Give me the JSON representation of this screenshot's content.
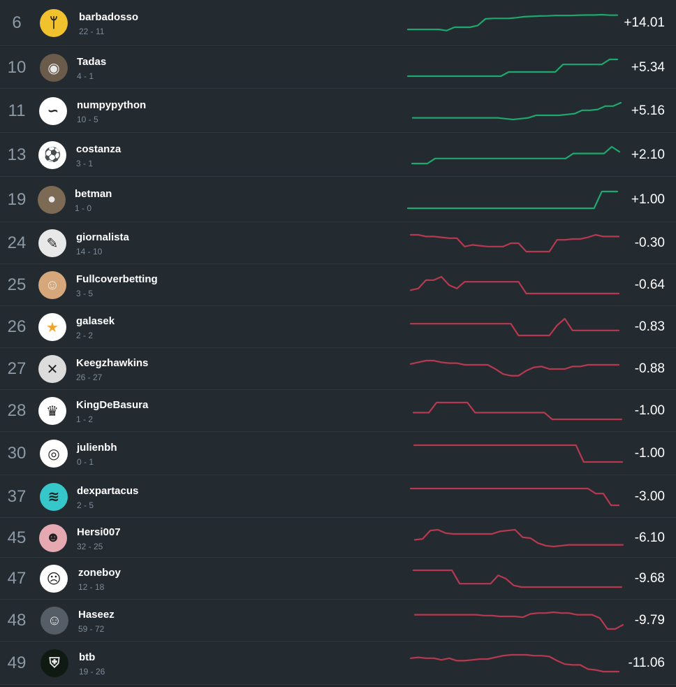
{
  "colors": {
    "positive": "#1fa86e",
    "negative": "#b8394f"
  },
  "rows": [
    {
      "rank": "6",
      "name": "barbadosso",
      "record": "22 - 11",
      "profit": "+14.01",
      "avatar_icon": "hook-logo-icon",
      "avatar_bg": "#f2c12e",
      "avatar_glyph": "ᛘ",
      "trend": "positive",
      "spark": [
        0.12,
        0.12,
        0.12,
        0.12,
        0.12,
        0.05,
        0.25,
        0.25,
        0.25,
        0.35,
        0.75,
        0.78,
        0.78,
        0.78,
        0.82,
        0.88,
        0.9,
        0.92,
        0.93,
        0.95,
        0.95,
        0.95,
        0.97,
        0.98,
        0.98,
        1.0,
        0.97,
        0.97
      ]
    },
    {
      "rank": "10",
      "name": "Tadas",
      "record": "4 - 1",
      "profit": "+5.34",
      "avatar_icon": "person-photo-icon",
      "avatar_bg": "#6b5b4a",
      "avatar_glyph": "◉",
      "trend": "positive",
      "spark": [
        0.0,
        0.0,
        0.0,
        0.0,
        0.0,
        0.0,
        0.0,
        0.0,
        0.0,
        0.0,
        0.0,
        0.0,
        0.0,
        0.25,
        0.25,
        0.25,
        0.25,
        0.25,
        0.25,
        0.25,
        0.7,
        0.7,
        0.7,
        0.7,
        0.7,
        0.7,
        1.0,
        1.0
      ]
    },
    {
      "rank": "11",
      "name": "numpypython",
      "record": "10 - 5",
      "profit": "+5.16",
      "avatar_icon": "python-logo-icon",
      "avatar_bg": "#ffffff",
      "avatar_glyph": "∽",
      "trend": "positive",
      "spark": [
        0.1,
        0.1,
        0.1,
        0.1,
        0.1,
        0.1,
        0.1,
        0.1,
        0.1,
        0.1,
        0.1,
        0.1,
        0.05,
        0.0,
        0.05,
        0.1,
        0.25,
        0.25,
        0.25,
        0.25,
        0.3,
        0.35,
        0.55,
        0.55,
        0.6,
        0.8,
        0.8,
        1.0
      ]
    },
    {
      "rank": "13",
      "name": "costanza",
      "record": "3 - 1",
      "profit": "+2.10",
      "avatar_icon": "soccer-ball-icon",
      "avatar_bg": "#ffffff",
      "avatar_glyph": "⚽",
      "trend": "positive",
      "spark": [
        0.0,
        0.0,
        0.0,
        0.3,
        0.3,
        0.3,
        0.3,
        0.3,
        0.3,
        0.3,
        0.3,
        0.3,
        0.3,
        0.3,
        0.3,
        0.3,
        0.3,
        0.3,
        0.3,
        0.3,
        0.3,
        0.6,
        0.6,
        0.6,
        0.6,
        0.6,
        1.0,
        0.7
      ]
    },
    {
      "rank": "19",
      "name": "betman",
      "record": "1 - 0",
      "profit": "+1.00",
      "avatar_icon": "person-photo-icon",
      "avatar_bg": "#7d6a55",
      "avatar_glyph": "●",
      "trend": "positive",
      "spark": [
        0.0,
        0.0,
        0.0,
        0.0,
        0.0,
        0.0,
        0.0,
        0.0,
        0.0,
        0.0,
        0.0,
        0.0,
        0.0,
        0.0,
        0.0,
        0.0,
        0.0,
        0.0,
        0.0,
        0.0,
        0.0,
        0.0,
        0.0,
        0.0,
        0.0,
        1.0,
        1.0,
        1.0
      ]
    },
    {
      "rank": "24",
      "name": "giornalista",
      "record": "14 - 10",
      "profit": "-0.30",
      "avatar_icon": "newspaper-logo-icon",
      "avatar_bg": "#e8e8e8",
      "avatar_glyph": "✎",
      "trend": "negative",
      "spark": [
        1.0,
        1.0,
        0.9,
        0.9,
        0.85,
        0.8,
        0.8,
        0.3,
        0.4,
        0.35,
        0.3,
        0.3,
        0.3,
        0.5,
        0.5,
        0.0,
        0.0,
        0.0,
        0.0,
        0.7,
        0.7,
        0.75,
        0.75,
        0.85,
        1.0,
        0.9,
        0.9,
        0.9
      ]
    },
    {
      "rank": "25",
      "name": "Fullcoverbetting",
      "record": "3 - 5",
      "profit": "-0.64",
      "avatar_icon": "person-photo-icon",
      "avatar_bg": "#d6a77a",
      "avatar_glyph": "☺",
      "trend": "negative",
      "spark": [
        0.2,
        0.3,
        0.8,
        0.8,
        1.0,
        0.5,
        0.3,
        0.7,
        0.7,
        0.7,
        0.7,
        0.7,
        0.7,
        0.7,
        0.7,
        0.0,
        0.0,
        0.0,
        0.0,
        0.0,
        0.0,
        0.0,
        0.0,
        0.0,
        0.0,
        0.0,
        0.0,
        0.0
      ]
    },
    {
      "rank": "26",
      "name": "galasek",
      "record": "2 - 2",
      "profit": "-0.83",
      "avatar_icon": "star-icon",
      "avatar_bg": "#ffffff",
      "avatar_glyph": "★",
      "trend": "negative",
      "spark": [
        0.7,
        0.7,
        0.7,
        0.7,
        0.7,
        0.7,
        0.7,
        0.7,
        0.7,
        0.7,
        0.7,
        0.7,
        0.7,
        0.7,
        0.0,
        0.0,
        0.0,
        0.0,
        0.0,
        0.6,
        1.0,
        0.3,
        0.3,
        0.3,
        0.3,
        0.3,
        0.3,
        0.3
      ]
    },
    {
      "rank": "27",
      "name": "Keegzhawkins",
      "record": "26 - 27",
      "profit": "-0.88",
      "avatar_icon": "hawk-logo-icon",
      "avatar_bg": "#dcdcdc",
      "avatar_glyph": "✕",
      "trend": "negative",
      "spark": [
        0.8,
        0.9,
        1.0,
        1.0,
        0.9,
        0.85,
        0.85,
        0.75,
        0.75,
        0.75,
        0.75,
        0.5,
        0.2,
        0.1,
        0.1,
        0.4,
        0.6,
        0.65,
        0.5,
        0.5,
        0.5,
        0.65,
        0.65,
        0.75,
        0.75,
        0.75,
        0.75,
        0.75
      ]
    },
    {
      "rank": "28",
      "name": "KingDeBasura",
      "record": "1 - 2",
      "profit": "-1.00",
      "avatar_icon": "trash-can-icon",
      "avatar_bg": "#ffffff",
      "avatar_glyph": "♛",
      "trend": "negative",
      "spark": [
        0.4,
        0.4,
        0.4,
        1.0,
        1.0,
        1.0,
        1.0,
        1.0,
        0.4,
        0.4,
        0.4,
        0.4,
        0.4,
        0.4,
        0.4,
        0.4,
        0.4,
        0.4,
        0.0,
        0.0,
        0.0,
        0.0,
        0.0,
        0.0,
        0.0,
        0.0,
        0.0,
        0.0
      ]
    },
    {
      "rank": "30",
      "name": "julienbh",
      "record": "0 - 1",
      "profit": "-1.00",
      "avatar_icon": "robot-icon",
      "avatar_bg": "#ffffff",
      "avatar_glyph": "◎",
      "trend": "negative",
      "spark": [
        1.0,
        1.0,
        1.0,
        1.0,
        1.0,
        1.0,
        1.0,
        1.0,
        1.0,
        1.0,
        1.0,
        1.0,
        1.0,
        1.0,
        1.0,
        1.0,
        1.0,
        1.0,
        1.0,
        1.0,
        1.0,
        1.0,
        0.0,
        0.0,
        0.0,
        0.0,
        0.0,
        0.0
      ]
    },
    {
      "rank": "37",
      "name": "dexpartacus",
      "record": "2 - 5",
      "profit": "-3.00",
      "avatar_icon": "graffiti-logo-icon",
      "avatar_bg": "#35c7c9",
      "avatar_glyph": "≋",
      "trend": "negative",
      "spark": [
        1.0,
        1.0,
        1.0,
        1.0,
        1.0,
        1.0,
        1.0,
        1.0,
        1.0,
        1.0,
        1.0,
        1.0,
        1.0,
        1.0,
        1.0,
        1.0,
        1.0,
        1.0,
        1.0,
        1.0,
        1.0,
        1.0,
        1.0,
        1.0,
        0.7,
        0.7,
        0.0,
        0.0
      ]
    },
    {
      "rank": "45",
      "name": "Hersi007",
      "record": "32 - 25",
      "profit": "-6.10",
      "avatar_icon": "person-photo-icon",
      "avatar_bg": "#e6a9b2",
      "avatar_glyph": "☻",
      "trend": "negative",
      "spark": [
        0.4,
        0.45,
        0.95,
        1.0,
        0.8,
        0.75,
        0.75,
        0.75,
        0.75,
        0.75,
        0.75,
        0.9,
        0.95,
        1.0,
        0.55,
        0.5,
        0.2,
        0.05,
        0.0,
        0.05,
        0.1,
        0.1,
        0.1,
        0.1,
        0.1,
        0.1,
        0.1,
        0.1
      ]
    },
    {
      "rank": "47",
      "name": "zoneboy",
      "record": "12 - 18",
      "profit": "-9.68",
      "avatar_icon": "cartoon-face-icon",
      "avatar_bg": "#ffffff",
      "avatar_glyph": "☹",
      "trend": "negative",
      "spark": [
        1.0,
        1.0,
        1.0,
        1.0,
        1.0,
        1.0,
        0.2,
        0.2,
        0.2,
        0.2,
        0.2,
        0.7,
        0.5,
        0.1,
        0.0,
        0.0,
        0.0,
        0.0,
        0.0,
        0.0,
        0.0,
        0.0,
        0.0,
        0.0,
        0.0,
        0.0,
        0.0,
        0.0
      ]
    },
    {
      "rank": "48",
      "name": "Haseez",
      "record": "59 - 72",
      "profit": "-9.79",
      "avatar_icon": "person-photo-icon",
      "avatar_bg": "#555d66",
      "avatar_glyph": "☺",
      "trend": "negative",
      "spark": [
        0.85,
        0.85,
        0.85,
        0.85,
        0.85,
        0.85,
        0.85,
        0.85,
        0.85,
        0.8,
        0.8,
        0.75,
        0.75,
        0.75,
        0.7,
        0.9,
        0.95,
        0.95,
        1.0,
        0.95,
        0.95,
        0.85,
        0.85,
        0.85,
        0.65,
        0.0,
        0.0,
        0.25
      ]
    },
    {
      "rank": "49",
      "name": "btb",
      "record": "19 - 26",
      "profit": "-11.06",
      "avatar_icon": "shield-logo-icon",
      "avatar_bg": "#0f1a12",
      "avatar_glyph": "⛨",
      "trend": "negative",
      "spark": [
        0.8,
        0.85,
        0.8,
        0.8,
        0.7,
        0.8,
        0.65,
        0.65,
        0.7,
        0.75,
        0.75,
        0.85,
        0.95,
        1.0,
        1.0,
        1.0,
        0.95,
        0.95,
        0.9,
        0.65,
        0.45,
        0.4,
        0.4,
        0.15,
        0.1,
        0.0,
        0.0,
        0.0
      ]
    }
  ]
}
